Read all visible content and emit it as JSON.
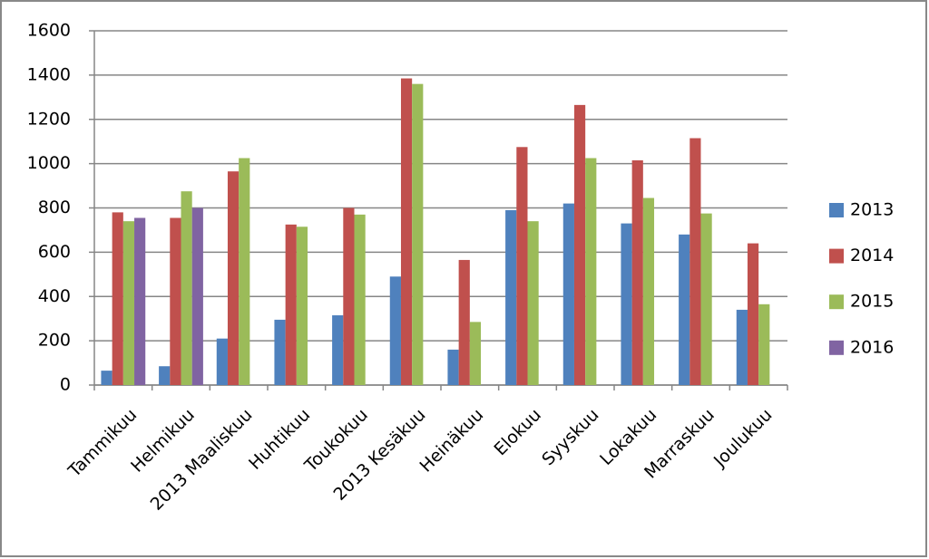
{
  "chart_data": {
    "type": "bar",
    "categories": [
      "Tammikuu",
      "Helmikuu",
      "2013 Maaliskuu",
      "Huhtikuu",
      "Toukokuu",
      "2013 Kesäkuu",
      "Heinäkuu",
      "Elokuu",
      "Syyskuu",
      "Lokakuu",
      "Marraskuu",
      "Joulukuu"
    ],
    "series": [
      {
        "name": "2013",
        "color": "#4f81bd",
        "values": [
          65,
          85,
          210,
          295,
          315,
          490,
          160,
          790,
          820,
          730,
          680,
          340
        ]
      },
      {
        "name": "2014",
        "color": "#c0504d",
        "values": [
          780,
          755,
          965,
          725,
          800,
          1385,
          565,
          1075,
          1265,
          1015,
          1115,
          640
        ]
      },
      {
        "name": "2015",
        "color": "#9bbb59",
        "values": [
          740,
          875,
          1025,
          715,
          770,
          1360,
          285,
          740,
          1025,
          845,
          775,
          365
        ]
      },
      {
        "name": "2016",
        "color": "#8064a2",
        "values": [
          755,
          800,
          null,
          null,
          null,
          null,
          null,
          null,
          null,
          null,
          null,
          null
        ]
      }
    ],
    "ylim": [
      0,
      1600
    ],
    "yticks": [
      0,
      200,
      400,
      600,
      800,
      1000,
      1200,
      1400,
      1600
    ],
    "grid": true,
    "legend": "right"
  }
}
